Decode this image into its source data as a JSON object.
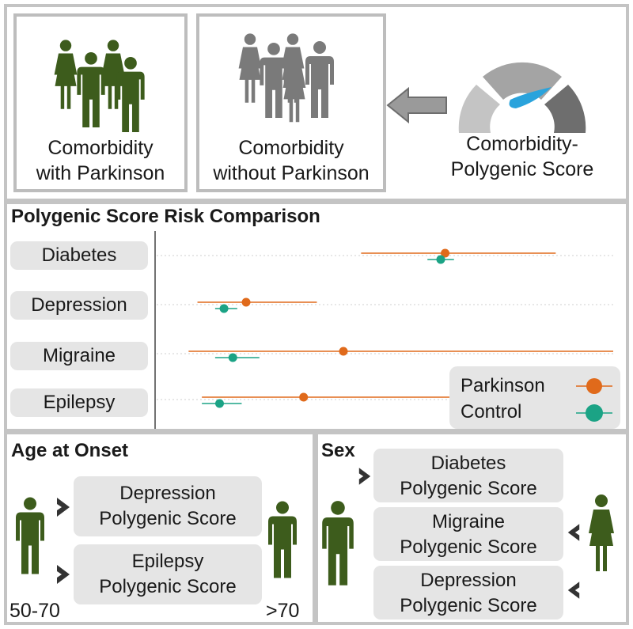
{
  "top": {
    "box1_label": [
      "Comorbidity",
      "with Parkinson"
    ],
    "box2_label": [
      "Comorbidity",
      "without Parkinson"
    ],
    "gauge_label": [
      "Comorbidity-",
      "Polygenic Score"
    ]
  },
  "chart": {
    "title": "Polygenic Score Risk Comparison",
    "legend": [
      "Parkinson",
      "Control"
    ]
  },
  "chart_data": {
    "type": "scatter",
    "title": "Polygenic Score Risk Comparison",
    "categories": [
      "Diabetes",
      "Depression",
      "Migraine",
      "Epilepsy"
    ],
    "series": [
      {
        "name": "Parkinson",
        "color": "#e06a1b",
        "points": [
          {
            "est": 0.62,
            "low": 0.43,
            "high": 0.87
          },
          {
            "est": 0.17,
            "low": 0.06,
            "high": 0.33
          },
          {
            "est": 0.39,
            "low": 0.04,
            "high": 1.0
          },
          {
            "est": 0.3,
            "low": 0.07,
            "high": 0.63
          }
        ]
      },
      {
        "name": "Control",
        "color": "#1ba385",
        "points": [
          {
            "est": 0.61,
            "low": 0.58,
            "high": 0.64
          },
          {
            "est": 0.12,
            "low": 0.1,
            "high": 0.15
          },
          {
            "est": 0.14,
            "low": 0.1,
            "high": 0.2
          },
          {
            "est": 0.11,
            "low": 0.07,
            "high": 0.16
          }
        ]
      }
    ],
    "grid": true,
    "legend_position": "bottom-right"
  },
  "age": {
    "title": "Age at Onset",
    "pill1": [
      "Depression",
      "Polygenic Score"
    ],
    "pill2": [
      "Epilepsy",
      "Polygenic Score"
    ],
    "left_label": "50-70",
    "right_label": ">70"
  },
  "sex": {
    "title": "Sex",
    "pill1": [
      "Diabetes",
      "Polygenic Score"
    ],
    "pill2": [
      "Migraine",
      "Polygenic Score"
    ],
    "pill3": [
      "Depression",
      "Polygenic Score"
    ]
  },
  "colors": {
    "parkinson_people": "#3d5c1c",
    "control_people": "#7a7a7a",
    "gauge_needle": "#2aa3dc",
    "parkinson": "#e06a1b",
    "control": "#1ba385"
  }
}
